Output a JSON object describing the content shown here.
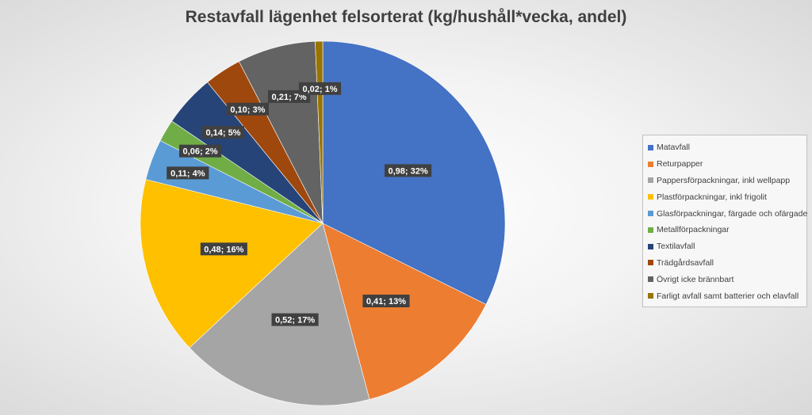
{
  "chart_data": {
    "type": "pie",
    "title": "Restavfall lägenhet felsorterat (kg/hushåll*vecka, andel)",
    "legend_position": "right",
    "slices": [
      {
        "name": "Matavfall",
        "value": 0.98,
        "percent": 32,
        "label": "0,98; 32%",
        "color": "#4472C4"
      },
      {
        "name": "Returpapper",
        "value": 0.41,
        "percent": 13,
        "label": "0,41; 13%",
        "color": "#ED7D31"
      },
      {
        "name": "Pappersförpackningar, inkl wellpapp",
        "value": 0.52,
        "percent": 17,
        "label": "0,52; 17%",
        "color": "#A5A5A5"
      },
      {
        "name": "Plastförpackningar, inkl frigolit",
        "value": 0.48,
        "percent": 16,
        "label": "0,48; 16%",
        "color": "#FFC000"
      },
      {
        "name": "Glasförpackningar, färgade och ofärgade",
        "value": 0.11,
        "percent": 4,
        "label": "0,11; 4%",
        "color": "#5B9BD5"
      },
      {
        "name": "Metallförpackningar",
        "value": 0.06,
        "percent": 2,
        "label": "0,06; 2%",
        "color": "#70AD47"
      },
      {
        "name": "Textilavfall",
        "value": 0.14,
        "percent": 5,
        "label": "0,14; 5%",
        "color": "#264478"
      },
      {
        "name": "Trädgårdsavfall",
        "value": 0.1,
        "percent": 3,
        "label": "0,10; 3%",
        "color": "#9E480E"
      },
      {
        "name": "Övrigt icke brännbart",
        "value": 0.21,
        "percent": 7,
        "label": "0,21; 7%",
        "color": "#636363"
      },
      {
        "name": "Farligt avfall samt batterier och elavfall",
        "value": 0.02,
        "percent": 1,
        "label": "0,02; 1%",
        "color": "#997300"
      }
    ]
  }
}
